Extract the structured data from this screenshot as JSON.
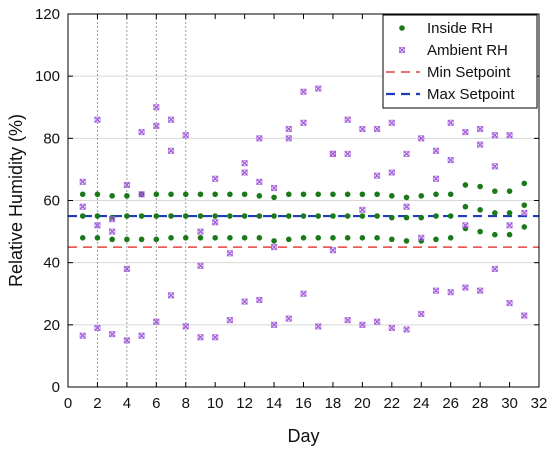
{
  "chart_data": {
    "type": "scatter",
    "title": "",
    "xlabel": "Day",
    "ylabel": "Relative Humidity (%)",
    "xlim": [
      0,
      32
    ],
    "ylim": [
      0,
      120
    ],
    "xticks": [
      0,
      2,
      4,
      6,
      8,
      10,
      12,
      14,
      16,
      18,
      20,
      22,
      24,
      26,
      28,
      30,
      32
    ],
    "yticks": [
      0,
      20,
      40,
      60,
      80,
      100,
      120
    ],
    "legend_position": "top-right",
    "colors": {
      "inside": "#1a7a1a",
      "ambient": "#a05ad8",
      "min": "#e8433c",
      "max": "#1f3cc0"
    },
    "vertical_markers_x": [
      2,
      4,
      6,
      8
    ],
    "series": [
      {
        "name": "Inside RH",
        "marker": "dot",
        "points": [
          [
            1,
            62
          ],
          [
            1,
            55
          ],
          [
            1,
            48
          ],
          [
            2,
            62
          ],
          [
            2,
            55
          ],
          [
            2,
            48
          ],
          [
            3,
            61.5
          ],
          [
            3,
            54.5
          ],
          [
            3,
            47.5
          ],
          [
            4,
            61.5
          ],
          [
            4,
            55
          ],
          [
            4,
            47.5
          ],
          [
            5,
            62
          ],
          [
            5,
            55
          ],
          [
            5,
            47.5
          ],
          [
            6,
            62
          ],
          [
            6,
            55
          ],
          [
            6,
            47.5
          ],
          [
            7,
            62
          ],
          [
            7,
            55
          ],
          [
            7,
            48
          ],
          [
            8,
            62
          ],
          [
            8,
            55
          ],
          [
            8,
            48
          ],
          [
            9,
            62
          ],
          [
            9,
            55
          ],
          [
            9,
            48
          ],
          [
            10,
            62
          ],
          [
            10,
            55
          ],
          [
            10,
            48
          ],
          [
            11,
            62
          ],
          [
            11,
            55
          ],
          [
            11,
            48
          ],
          [
            12,
            62
          ],
          [
            12,
            55
          ],
          [
            12,
            48
          ],
          [
            13,
            61.5
          ],
          [
            13,
            55
          ],
          [
            13,
            48
          ],
          [
            14,
            61
          ],
          [
            14,
            55
          ],
          [
            14,
            47
          ],
          [
            15,
            62
          ],
          [
            15,
            55
          ],
          [
            15,
            47.5
          ],
          [
            16,
            62
          ],
          [
            16,
            55
          ],
          [
            16,
            48
          ],
          [
            17,
            62
          ],
          [
            17,
            55
          ],
          [
            17,
            48
          ],
          [
            18,
            62
          ],
          [
            18,
            55
          ],
          [
            18,
            48
          ],
          [
            19,
            62
          ],
          [
            19,
            55
          ],
          [
            19,
            48
          ],
          [
            20,
            62
          ],
          [
            20,
            55
          ],
          [
            20,
            48
          ],
          [
            21,
            62
          ],
          [
            21,
            55
          ],
          [
            21,
            48
          ],
          [
            22,
            61.5
          ],
          [
            22,
            54.5
          ],
          [
            22,
            47.5
          ],
          [
            23,
            61
          ],
          [
            23,
            54.5
          ],
          [
            23,
            47
          ],
          [
            24,
            61.5
          ],
          [
            24,
            54.5
          ],
          [
            24,
            47
          ],
          [
            25,
            62
          ],
          [
            25,
            55
          ],
          [
            25,
            47.5
          ],
          [
            26,
            62
          ],
          [
            26,
            55
          ],
          [
            26,
            48
          ],
          [
            27,
            65
          ],
          [
            27,
            58
          ],
          [
            27,
            51
          ],
          [
            28,
            64.5
          ],
          [
            28,
            57
          ],
          [
            28,
            50
          ],
          [
            29,
            63
          ],
          [
            29,
            56
          ],
          [
            29,
            49
          ],
          [
            30,
            63
          ],
          [
            30,
            56
          ],
          [
            30,
            49
          ],
          [
            31,
            65.5
          ],
          [
            31,
            58.5
          ],
          [
            31,
            51.5
          ]
        ]
      },
      {
        "name": "Ambient RH",
        "marker": "x-square",
        "points": [
          [
            1,
            66
          ],
          [
            1,
            58
          ],
          [
            1,
            16.5
          ],
          [
            2,
            86
          ],
          [
            2,
            52
          ],
          [
            2,
            19
          ],
          [
            3,
            54
          ],
          [
            3,
            50
          ],
          [
            3,
            17
          ],
          [
            4,
            65
          ],
          [
            4,
            38
          ],
          [
            4,
            15
          ],
          [
            5,
            62
          ],
          [
            5,
            82
          ],
          [
            5,
            16.5
          ],
          [
            6,
            90
          ],
          [
            6,
            84
          ],
          [
            6,
            21
          ],
          [
            7,
            86
          ],
          [
            7,
            76
          ],
          [
            7,
            29.5
          ],
          [
            8,
            81
          ],
          [
            8,
            19.5
          ],
          [
            9,
            16
          ],
          [
            9,
            50
          ],
          [
            9,
            39
          ],
          [
            10,
            67
          ],
          [
            10,
            53
          ],
          [
            10,
            16
          ],
          [
            11,
            43
          ],
          [
            11,
            21.5
          ],
          [
            12,
            72
          ],
          [
            12,
            69
          ],
          [
            12,
            27.5
          ],
          [
            13,
            80
          ],
          [
            13,
            66
          ],
          [
            13,
            28
          ],
          [
            14,
            64
          ],
          [
            14,
            45
          ],
          [
            14,
            20
          ],
          [
            15,
            83
          ],
          [
            15,
            80
          ],
          [
            15,
            22
          ],
          [
            16,
            95
          ],
          [
            16,
            85
          ],
          [
            16,
            30
          ],
          [
            17,
            96
          ],
          [
            17,
            19.5
          ],
          [
            18,
            75
          ],
          [
            18,
            44
          ],
          [
            18,
            75
          ],
          [
            19,
            86
          ],
          [
            19,
            75
          ],
          [
            19,
            21.5
          ],
          [
            20,
            83
          ],
          [
            20,
            57
          ],
          [
            20,
            20
          ],
          [
            21,
            83
          ],
          [
            21,
            68
          ],
          [
            21,
            21
          ],
          [
            22,
            85
          ],
          [
            22,
            69
          ],
          [
            22,
            19
          ],
          [
            23,
            75
          ],
          [
            23,
            58
          ],
          [
            23,
            18.5
          ],
          [
            24,
            80
          ],
          [
            24,
            48
          ],
          [
            24,
            23.5
          ],
          [
            25,
            76
          ],
          [
            25,
            67
          ],
          [
            25,
            31
          ],
          [
            26,
            85
          ],
          [
            26,
            73
          ],
          [
            26,
            30.5
          ],
          [
            27,
            82
          ],
          [
            27,
            52
          ],
          [
            27,
            32
          ],
          [
            28,
            83
          ],
          [
            28,
            78
          ],
          [
            28,
            31
          ],
          [
            29,
            71
          ],
          [
            29,
            81
          ],
          [
            29,
            38
          ],
          [
            30,
            81
          ],
          [
            30,
            52
          ],
          [
            30,
            27
          ],
          [
            31,
            56
          ],
          [
            31,
            23
          ]
        ]
      },
      {
        "name": "Min Setpoint",
        "type": "hline",
        "y": 45,
        "style": "dashed"
      },
      {
        "name": "Max Setpoint",
        "type": "hline",
        "y": 55,
        "style": "dashed"
      }
    ]
  }
}
